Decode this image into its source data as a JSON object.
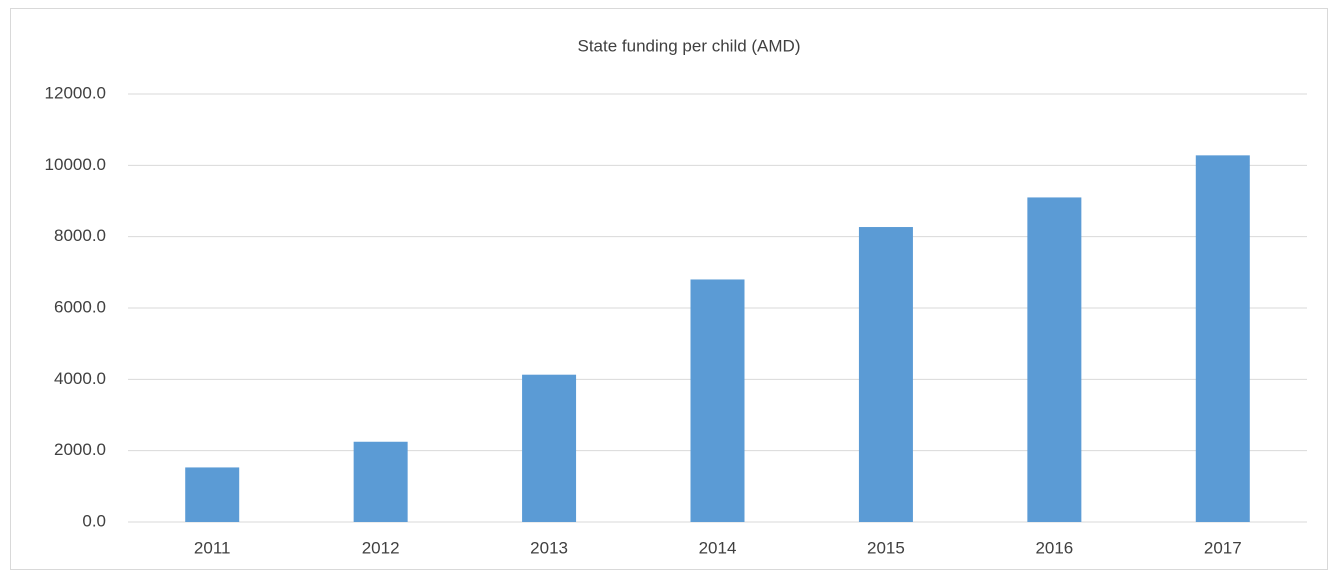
{
  "chart_data": {
    "type": "bar",
    "title": "State funding per child (AMD)",
    "categories": [
      "2011",
      "2012",
      "2013",
      "2014",
      "2015",
      "2016",
      "2017"
    ],
    "values": [
      1530,
      2250,
      4130,
      6800,
      8270,
      9100,
      10280
    ],
    "color": "#5b9bd5",
    "ylim": [
      0,
      12000
    ],
    "yticks": [
      {
        "value": 0,
        "label": "0.0"
      },
      {
        "value": 2000,
        "label": "2000.0"
      },
      {
        "value": 4000,
        "label": "4000.0"
      },
      {
        "value": 6000,
        "label": "6000.0"
      },
      {
        "value": 8000,
        "label": "8000.0"
      },
      {
        "value": 10000,
        "label": "10000.0"
      },
      {
        "value": 12000,
        "label": "12000.0"
      }
    ],
    "grid": true
  }
}
